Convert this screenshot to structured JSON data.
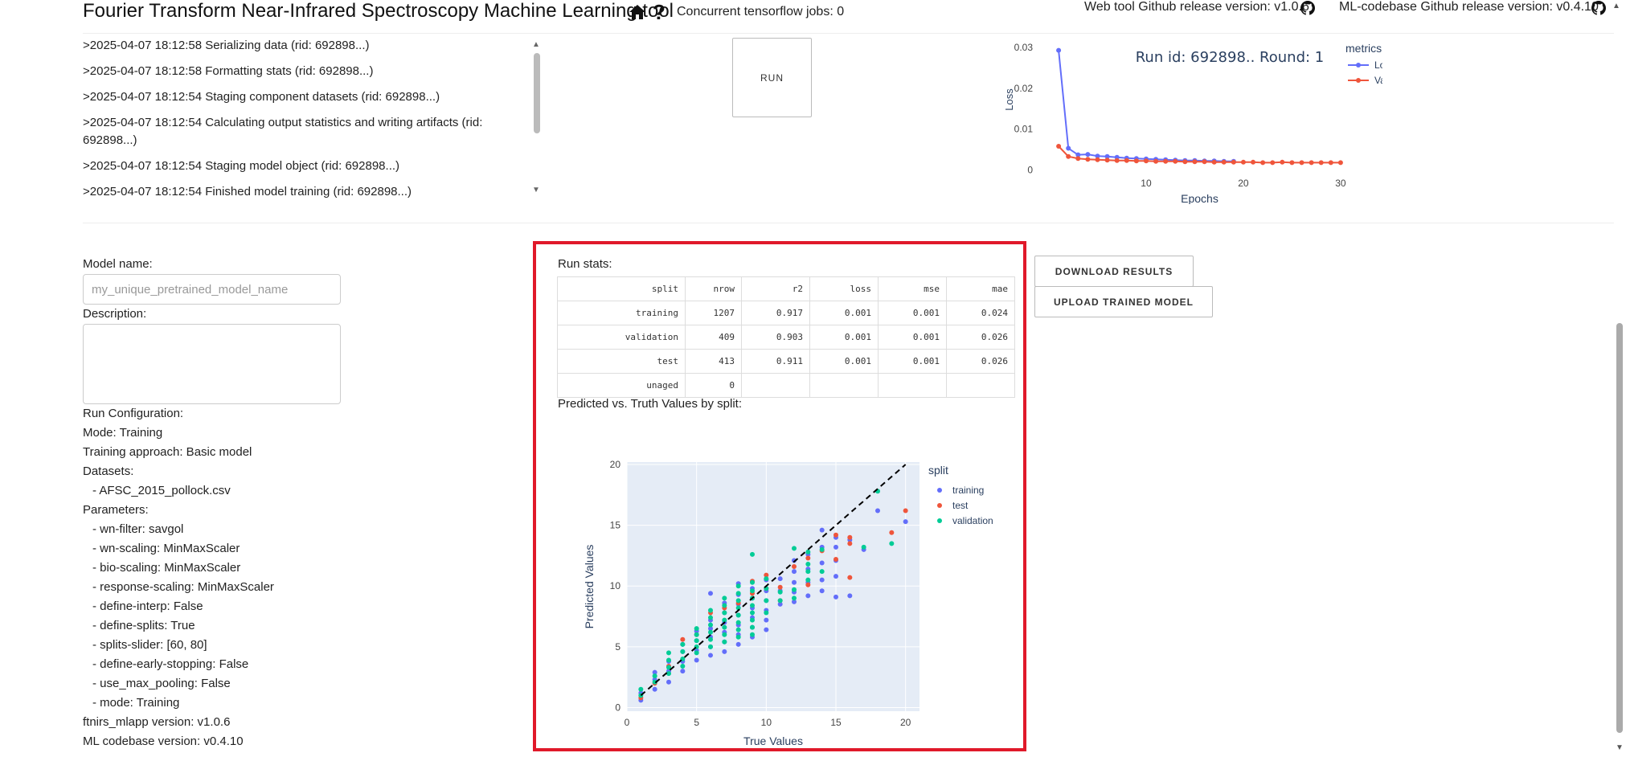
{
  "header": {
    "title": "Fourier Transform Near-Infrared Spectroscopy Machine Learning tool",
    "help_glyph": "?",
    "jobs": "Concurrent tensorflow jobs: 0",
    "webtool_release": "Web tool Github release version: v1.0.6",
    "mlcodebase_release": "ML-codebase Github release version: v0.4.10",
    "icons": [
      "home-icon",
      "help-icon",
      "github-icon"
    ]
  },
  "log": {
    "lines": [
      ">2025-04-07 18:12:58 Serializing data (rid: 692898...)",
      ">2025-04-07 18:12:58 Formatting stats (rid: 692898...)",
      ">2025-04-07 18:12:54 Staging component datasets (rid: 692898...)",
      ">2025-04-07 18:12:54 Calculating output statistics and writing artifacts (rid: 692898...)",
      ">2025-04-07 18:12:54 Staging model object (rid: 692898...)",
      ">2025-04-07 18:12:54 Finished model training (rid: 692898...)"
    ]
  },
  "run_button": "RUN",
  "form": {
    "model_name_label": "Model name:",
    "model_name_placeholder": "my_unique_pretrained_model_name",
    "description_label": "Description:",
    "config_lines": [
      "Run Configuration:",
      "Mode: Training",
      "Training approach: Basic model",
      "Datasets:",
      "- AFSC_2015_pollock.csv",
      "Parameters:",
      "- wn-filter: savgol",
      "- wn-scaling: MinMaxScaler",
      "- bio-scaling: MinMaxScaler",
      "- response-scaling: MinMaxScaler",
      "- define-interp: False",
      "- define-splits: True",
      "- splits-slider: [60, 80]",
      "- define-early-stopping: False",
      "- use_max_pooling: False",
      "- mode: Training",
      "ftnirs_mlapp version: v1.0.6",
      "ML codebase version: v0.4.10"
    ]
  },
  "run_stats": {
    "title": "Run stats:",
    "columns": [
      "split",
      "nrow",
      "r2",
      "loss",
      "mse",
      "mae"
    ],
    "rows": [
      [
        "training",
        "1207",
        "0.917",
        "0.001",
        "0.001",
        "0.024"
      ],
      [
        "validation",
        "409",
        "0.903",
        "0.001",
        "0.001",
        "0.026"
      ],
      [
        "test",
        "413",
        "0.911",
        "0.001",
        "0.001",
        "0.026"
      ],
      [
        "unaged",
        "0",
        "",
        "",
        "",
        ""
      ]
    ]
  },
  "pred_title": "Predicted vs. Truth Values by split:",
  "buttons": {
    "download": "DOWNLOAD RESULTS",
    "upload": "UPLOAD TRAINED MODEL"
  },
  "colors": {
    "loss": "#636efa",
    "val_loss": "#ef553b",
    "validation": "#00cc96",
    "highlight": "#e0192a",
    "plot_bg": "#e5ecf6"
  },
  "chart_data": [
    {
      "type": "line",
      "title": "Run id: 692898.. Round: 1",
      "xlabel": "Epochs",
      "ylabel": "Loss",
      "legend_title": "metrics",
      "legend_position": "top-right",
      "xlim": [
        0,
        31
      ],
      "ylim": [
        -0.0005,
        0.031
      ],
      "x_ticks": [
        10,
        20,
        30
      ],
      "y_ticks": [
        0,
        0.01,
        0.02,
        0.03
      ],
      "y_tick_labels": [
        "0",
        "0.01",
        "0.02",
        "0.03"
      ],
      "series": [
        {
          "name": "Loss",
          "x": [
            1,
            2,
            3,
            4,
            5,
            6,
            7,
            8,
            9,
            10,
            11,
            12,
            13,
            14,
            15,
            16,
            17,
            18,
            19
          ],
          "y": [
            0.0293,
            0.0053,
            0.0037,
            0.0038,
            0.0034,
            0.0033,
            0.0031,
            0.0029,
            0.0028,
            0.0027,
            0.0026,
            0.0025,
            0.0024,
            0.0023,
            0.0023,
            0.0022,
            0.0022,
            0.0021,
            0.0021
          ]
        },
        {
          "name": "Val Loss",
          "x": [
            1,
            2,
            3,
            4,
            5,
            6,
            7,
            8,
            9,
            10,
            11,
            12,
            13,
            14,
            15,
            16,
            17,
            18,
            19,
            20,
            21,
            22,
            23,
            24,
            25,
            26,
            27,
            28,
            29,
            30
          ],
          "y": [
            0.0058,
            0.0033,
            0.0028,
            0.0026,
            0.0025,
            0.0024,
            0.0023,
            0.0023,
            0.0022,
            0.0022,
            0.0021,
            0.0021,
            0.0021,
            0.002,
            0.002,
            0.002,
            0.0019,
            0.0019,
            0.0019,
            0.0019,
            0.0019,
            0.0018,
            0.0018,
            0.0019,
            0.0018,
            0.0018,
            0.0018,
            0.0018,
            0.0018,
            0.0018
          ]
        }
      ]
    },
    {
      "type": "scatter",
      "xlabel": "True Values",
      "ylabel": "Predicted Values",
      "legend_title": "split",
      "legend_position": "top-right",
      "xlim": [
        0,
        21
      ],
      "ylim": [
        -0.3,
        20.2
      ],
      "x_ticks": [
        0,
        5,
        10,
        15,
        20
      ],
      "y_ticks": [
        0,
        5,
        10,
        15,
        20
      ],
      "reference_line": [
        [
          1,
          1
        ],
        [
          20,
          20
        ]
      ],
      "series": [
        {
          "name": "training",
          "points": [
            [
              1,
              0.6
            ],
            [
              1,
              1.2
            ],
            [
              2,
              1.5
            ],
            [
              2,
              2.3
            ],
            [
              2,
              2.9
            ],
            [
              3,
              2.1
            ],
            [
              3,
              3.0
            ],
            [
              3,
              3.8
            ],
            [
              4,
              3.0
            ],
            [
              4,
              3.8
            ],
            [
              4,
              4.6
            ],
            [
              4,
              5.2
            ],
            [
              5,
              3.9
            ],
            [
              5,
              4.7
            ],
            [
              5,
              5.5
            ],
            [
              5,
              6.3
            ],
            [
              6,
              4.3
            ],
            [
              6,
              5.0
            ],
            [
              6,
              5.8
            ],
            [
              6,
              6.5
            ],
            [
              6,
              7.2
            ],
            [
              6,
              9.4
            ],
            [
              7,
              4.6
            ],
            [
              7,
              5.4
            ],
            [
              7,
              6.2
            ],
            [
              7,
              7.0
            ],
            [
              7,
              7.8
            ],
            [
              7,
              8.6
            ],
            [
              8,
              5.2
            ],
            [
              8,
              6.0
            ],
            [
              8,
              6.8
            ],
            [
              8,
              7.6
            ],
            [
              8,
              8.5
            ],
            [
              8,
              9.3
            ],
            [
              8,
              10.2
            ],
            [
              9,
              5.8
            ],
            [
              9,
              6.6
            ],
            [
              9,
              7.4
            ],
            [
              9,
              8.2
            ],
            [
              9,
              9.0
            ],
            [
              9,
              9.8
            ],
            [
              10,
              6.4
            ],
            [
              10,
              7.2
            ],
            [
              10,
              8.0
            ],
            [
              10,
              8.8
            ],
            [
              10,
              9.6
            ],
            [
              10,
              10.5
            ],
            [
              11,
              8.5
            ],
            [
              11,
              9.6
            ],
            [
              11,
              10.6
            ],
            [
              12,
              8.7
            ],
            [
              12,
              9.5
            ],
            [
              12,
              10.3
            ],
            [
              12,
              11.2
            ],
            [
              12,
              12.1
            ],
            [
              13,
              9.2
            ],
            [
              13,
              10.3
            ],
            [
              13,
              11.4
            ],
            [
              13,
              12.6
            ],
            [
              14,
              9.6
            ],
            [
              14,
              10.5
            ],
            [
              14,
              11.9
            ],
            [
              14,
              13.2
            ],
            [
              14,
              14.6
            ],
            [
              15,
              9.1
            ],
            [
              15,
              10.8
            ],
            [
              15,
              12.1
            ],
            [
              15,
              13.2
            ],
            [
              15,
              14.0
            ],
            [
              16,
              9.2
            ],
            [
              16,
              13.8
            ],
            [
              17,
              13.0
            ],
            [
              18,
              16.2
            ],
            [
              20,
              15.3
            ]
          ]
        },
        {
          "name": "test",
          "points": [
            [
              1,
              0.8
            ],
            [
              2,
              2.0
            ],
            [
              3,
              3.4
            ],
            [
              4,
              5.6
            ],
            [
              5,
              6.0
            ],
            [
              6,
              7.8
            ],
            [
              7,
              8.2
            ],
            [
              8,
              8.6
            ],
            [
              9,
              9.4
            ],
            [
              9,
              10.4
            ],
            [
              10,
              9.8
            ],
            [
              10,
              10.9
            ],
            [
              11,
              8.8
            ],
            [
              11,
              9.9
            ],
            [
              12,
              11.6
            ],
            [
              13,
              10.1
            ],
            [
              13,
              12.3
            ],
            [
              14,
              12.9
            ],
            [
              15,
              14.2
            ],
            [
              15,
              12.2
            ],
            [
              16,
              10.7
            ],
            [
              16,
              13.5
            ],
            [
              16,
              14.0
            ],
            [
              19,
              14.4
            ],
            [
              20,
              16.2
            ]
          ]
        },
        {
          "name": "validation",
          "points": [
            [
              1,
              1.0
            ],
            [
              1,
              1.5
            ],
            [
              2,
              2.1
            ],
            [
              2,
              2.6
            ],
            [
              3,
              2.8
            ],
            [
              3,
              3.3
            ],
            [
              3,
              3.9
            ],
            [
              3,
              4.5
            ],
            [
              4,
              3.4
            ],
            [
              4,
              4.0
            ],
            [
              4,
              4.6
            ],
            [
              4,
              5.2
            ],
            [
              5,
              4.5
            ],
            [
              5,
              5.0
            ],
            [
              5,
              5.5
            ],
            [
              5,
              6.0
            ],
            [
              5,
              6.5
            ],
            [
              6,
              5.0
            ],
            [
              6,
              5.6
            ],
            [
              6,
              6.2
            ],
            [
              6,
              6.8
            ],
            [
              6,
              7.4
            ],
            [
              6,
              8.0
            ],
            [
              7,
              5.4
            ],
            [
              7,
              6.0
            ],
            [
              7,
              6.6
            ],
            [
              7,
              7.2
            ],
            [
              7,
              7.8
            ],
            [
              7,
              8.4
            ],
            [
              7,
              9.0
            ],
            [
              8,
              5.8
            ],
            [
              8,
              6.4
            ],
            [
              8,
              7.0
            ],
            [
              8,
              7.6
            ],
            [
              8,
              8.2
            ],
            [
              8,
              8.8
            ],
            [
              8,
              9.4
            ],
            [
              8,
              10.0
            ],
            [
              9,
              6.0
            ],
            [
              9,
              6.6
            ],
            [
              9,
              7.2
            ],
            [
              9,
              7.8
            ],
            [
              9,
              8.4
            ],
            [
              9,
              9.0
            ],
            [
              9,
              9.6
            ],
            [
              9,
              10.3
            ],
            [
              9,
              12.6
            ],
            [
              10,
              7.8
            ],
            [
              10,
              8.8
            ],
            [
              10,
              9.8
            ],
            [
              10,
              10.6
            ],
            [
              11,
              8.8
            ],
            [
              11,
              9.5
            ],
            [
              12,
              9.0
            ],
            [
              12,
              9.7
            ],
            [
              12,
              13.1
            ],
            [
              13,
              10.5
            ],
            [
              13,
              11.2
            ],
            [
              13,
              11.8
            ],
            [
              13,
              12.8
            ],
            [
              14,
              13.0
            ],
            [
              14,
              11.2
            ],
            [
              17,
              13.2
            ],
            [
              18,
              17.8
            ],
            [
              19,
              13.5
            ]
          ]
        }
      ]
    }
  ]
}
